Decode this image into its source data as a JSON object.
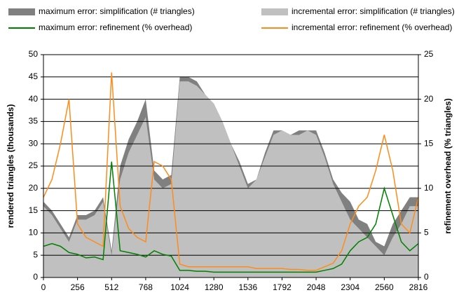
{
  "chart_data": {
    "type": "area-line",
    "x": [
      0,
      64,
      128,
      192,
      256,
      320,
      384,
      448,
      512,
      576,
      640,
      704,
      768,
      832,
      896,
      960,
      1024,
      1088,
      1152,
      1216,
      1280,
      1344,
      1408,
      1472,
      1536,
      1600,
      1664,
      1728,
      1792,
      1856,
      1920,
      1984,
      2048,
      2112,
      2176,
      2240,
      2304,
      2368,
      2432,
      2496,
      2560,
      2624,
      2688,
      2752,
      2816
    ],
    "series": [
      {
        "name": "maximum error: simplification (# triangles)",
        "kind": "area",
        "color": "#808080",
        "values": [
          17,
          15,
          12,
          9,
          14,
          14,
          15,
          18,
          6,
          25,
          31,
          35,
          40,
          24,
          22,
          23,
          45,
          45,
          44,
          41,
          39,
          35,
          30,
          26,
          21,
          22,
          28,
          33,
          33,
          32,
          33,
          33,
          33,
          28,
          22,
          19,
          17,
          13,
          12,
          8,
          7,
          12,
          15,
          18,
          18
        ]
      },
      {
        "name": "incremental error: simplification (# triangles)",
        "kind": "area",
        "color": "#c0c0c0",
        "values": [
          16,
          14,
          11,
          8,
          13,
          13,
          14,
          17,
          5,
          22,
          28,
          32,
          36,
          22,
          20,
          21,
          44,
          44,
          43,
          41,
          39,
          35,
          30,
          25,
          20,
          22,
          27,
          32,
          33,
          32,
          32,
          33,
          32,
          27,
          21,
          17,
          13,
          11,
          9,
          7,
          5,
          9,
          12,
          16,
          16
        ]
      },
      {
        "name": "maximum error: refinement (% overhead)",
        "kind": "line",
        "axis": "y2",
        "color": "#008000",
        "values": [
          3.5,
          3.8,
          3.5,
          2.8,
          2.6,
          2.2,
          2.3,
          2,
          13,
          3,
          2.8,
          2.6,
          2.3,
          3,
          2.6,
          2.4,
          0.8,
          0.8,
          0.7,
          0.7,
          0.6,
          0.6,
          0.6,
          0.6,
          0.6,
          0.6,
          0.6,
          0.6,
          0.6,
          0.6,
          0.6,
          0.6,
          0.6,
          0.8,
          1,
          1.5,
          3,
          4,
          4.5,
          6,
          10,
          7,
          4,
          3,
          3.8
        ]
      },
      {
        "name": "incremental error: refinement (% overhead)",
        "kind": "line",
        "axis": "y2",
        "color": "#ff8c1a",
        "values": [
          9,
          11,
          15,
          20,
          6,
          4.5,
          4,
          3.5,
          23,
          8,
          5.5,
          4.5,
          4,
          13,
          12.5,
          11,
          1.5,
          1.2,
          1.2,
          1.2,
          1.2,
          1.2,
          1.2,
          1.2,
          1.2,
          1,
          1,
          1,
          1,
          0.9,
          0.9,
          0.8,
          0.8,
          1.2,
          1.6,
          3,
          6,
          8,
          9,
          12,
          16,
          12,
          6,
          5,
          9
        ]
      }
    ],
    "ylabel": "rendered triangles (thousands)",
    "y2label": "refinement overhead (% triangles)",
    "xlim": [
      0,
      2816
    ],
    "xticks": [
      0,
      256,
      512,
      768,
      1024,
      1280,
      1536,
      1792,
      2048,
      2304,
      2560,
      2816
    ],
    "ylim": [
      0,
      50
    ],
    "yticks": [
      0,
      5,
      10,
      15,
      20,
      25,
      30,
      35,
      40,
      45,
      50
    ],
    "y2lim": [
      0,
      25
    ],
    "y2ticks": [
      0,
      5,
      10,
      15,
      20,
      25
    ],
    "grid": true
  }
}
